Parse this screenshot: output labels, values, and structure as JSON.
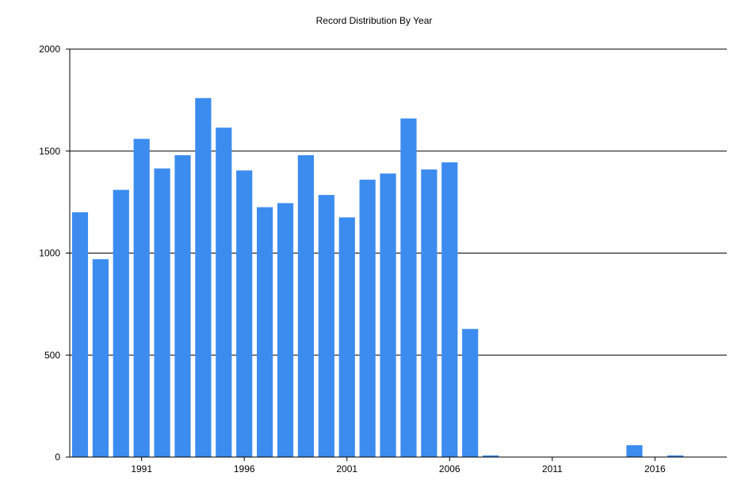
{
  "chart_data": {
    "type": "bar",
    "title": "Record Distribution By Year",
    "xlabel": "",
    "ylabel": "",
    "categories": [
      1988,
      1989,
      1990,
      1991,
      1992,
      1993,
      1994,
      1995,
      1996,
      1997,
      1998,
      1999,
      2000,
      2001,
      2002,
      2003,
      2004,
      2005,
      2006,
      2007,
      2008,
      2009,
      2010,
      2011,
      2012,
      2013,
      2014,
      2015,
      2016,
      2017
    ],
    "values": [
      1200,
      970,
      1310,
      1560,
      1415,
      1480,
      1760,
      1615,
      1405,
      1225,
      1245,
      1480,
      1285,
      1175,
      1360,
      1390,
      1660,
      1410,
      1445,
      628,
      8,
      0,
      0,
      0,
      0,
      0,
      0,
      58,
      0,
      8
    ],
    "ylim": [
      0,
      2000
    ],
    "yticks": [
      0,
      500,
      1000,
      1500,
      2000
    ],
    "xticks": [
      1991,
      1996,
      2001,
      2006,
      2011,
      2016
    ],
    "grid": "horizontal",
    "legend": "none",
    "bar_color": "#3c8cf0"
  }
}
